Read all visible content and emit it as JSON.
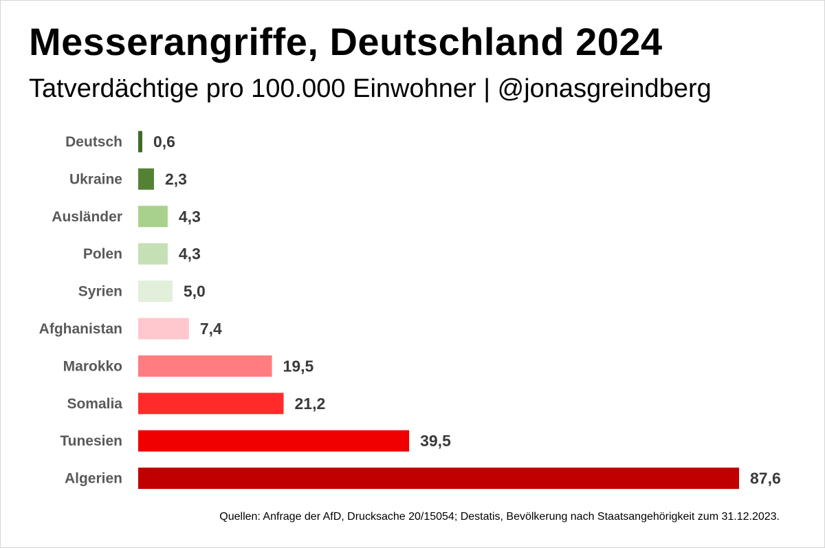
{
  "title": "Messerangriffe, Deutschland 2024",
  "subtitle": "Tatverdächtige pro 100.000 Einwohner | @jonasgreindberg",
  "source": "Quellen: Anfrage der AfD, Drucksache 20/15054; Destatis, Bevölkerung nach Staatsangehörigkeit zum 31.12.2023.",
  "chart_data": {
    "type": "bar",
    "orientation": "horizontal",
    "categories": [
      "Deutsch",
      "Ukraine",
      "Ausländer",
      "Polen",
      "Syrien",
      "Afghanistan",
      "Marokko",
      "Somalia",
      "Tunesien",
      "Algerien"
    ],
    "values": [
      0.6,
      2.3,
      4.3,
      4.3,
      5.0,
      7.4,
      19.5,
      21.2,
      39.5,
      87.6
    ],
    "value_labels": [
      "0,6",
      "2,3",
      "4,3",
      "4,3",
      "5,0",
      "7,4",
      "19,5",
      "21,2",
      "39,5",
      "87,6"
    ],
    "colors": [
      "#3f6b2a",
      "#548235",
      "#a9d18e",
      "#c5e0b4",
      "#e2efda",
      "#ffc7ce",
      "#ff7c80",
      "#ff2b2b",
      "#f00000",
      "#c00000"
    ],
    "xlim": [
      0,
      87.6
    ],
    "grid": false,
    "legend": "none"
  }
}
